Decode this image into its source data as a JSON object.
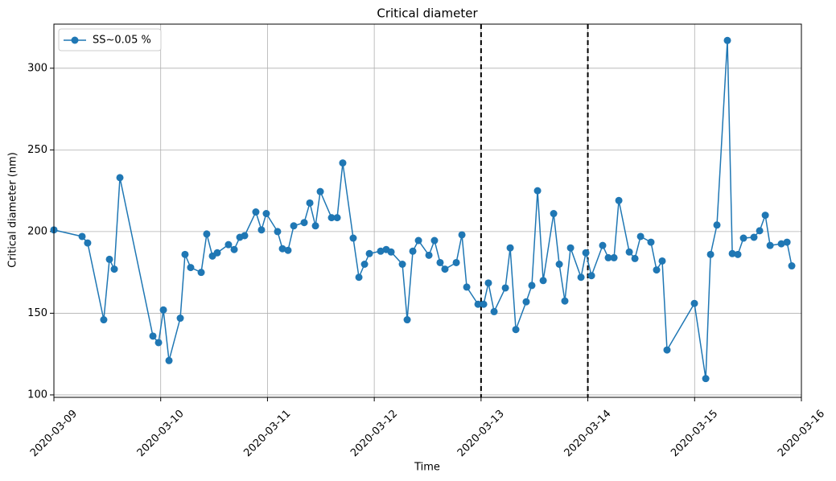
{
  "chart_data": {
    "type": "line",
    "title": "Critical diameter",
    "xlabel": "Time",
    "ylabel": "Critical diameter (nm)",
    "xlim": [
      "2020-03-09",
      "2020-03-16"
    ],
    "xticks": [
      "2020-03-09",
      "2020-03-10",
      "2020-03-11",
      "2020-03-12",
      "2020-03-13",
      "2020-03-14",
      "2020-03-15",
      "2020-03-16"
    ],
    "ylim": [
      98.5,
      327
    ],
    "yticks": [
      100,
      150,
      200,
      250,
      300
    ],
    "grid": true,
    "legend": "upper left",
    "vlines": [
      "2020-03-13",
      "2020-03-14"
    ],
    "vline_color": "#000000",
    "x": [
      "2020-03-09T00:00",
      "2020-03-09T06:20",
      "2020-03-09T07:35",
      "2020-03-09T11:12",
      "2020-03-09T12:29",
      "2020-03-09T13:34",
      "2020-03-09T14:50",
      "2020-03-09T22:15",
      "2020-03-09T23:31",
      "2020-03-10T00:36",
      "2020-03-10T01:52",
      "2020-03-10T04:24",
      "2020-03-10T05:28",
      "2020-03-10T06:44",
      "2020-03-10T09:06",
      "2020-03-10T10:21",
      "2020-03-10T11:38",
      "2020-03-10T12:43",
      "2020-03-10T15:14",
      "2020-03-10T16:31",
      "2020-03-10T17:47",
      "2020-03-10T18:52",
      "2020-03-10T21:23",
      "2020-03-10T22:39",
      "2020-03-10T23:44",
      "2020-03-11T02:16",
      "2020-03-11T03:22",
      "2020-03-11T04:37",
      "2020-03-11T05:54",
      "2020-03-11T08:15",
      "2020-03-11T09:31",
      "2020-03-11T10:47",
      "2020-03-11T11:52",
      "2020-03-11T14:24",
      "2020-03-11T15:40",
      "2020-03-11T16:55",
      "2020-03-11T19:16",
      "2020-03-11T20:33",
      "2020-03-11T21:49",
      "2020-03-11T22:54",
      "2020-03-12T01:26",
      "2020-03-12T02:41",
      "2020-03-12T03:47",
      "2020-03-12T06:19",
      "2020-03-12T07:24",
      "2020-03-12T08:40",
      "2020-03-12T09:56",
      "2020-03-12T12:17",
      "2020-03-12T13:32",
      "2020-03-12T14:48",
      "2020-03-12T15:53",
      "2020-03-12T18:26",
      "2020-03-12T19:42",
      "2020-03-12T20:47",
      "2020-03-12T23:19",
      "2020-03-13T00:35",
      "2020-03-13T01:39",
      "2020-03-13T02:56",
      "2020-03-13T05:28",
      "2020-03-13T06:33",
      "2020-03-13T07:49",
      "2020-03-13T10:09",
      "2020-03-13T11:25",
      "2020-03-13T12:42",
      "2020-03-13T13:58",
      "2020-03-13T16:19",
      "2020-03-13T17:35",
      "2020-03-13T18:50",
      "2020-03-13T20:07",
      "2020-03-13T22:28",
      "2020-03-13T23:33",
      "2020-03-14T00:49",
      "2020-03-14T03:20",
      "2020-03-14T04:36",
      "2020-03-14T05:53",
      "2020-03-14T06:58",
      "2020-03-14T09:19",
      "2020-03-14T10:35",
      "2020-03-14T11:51",
      "2020-03-14T14:11",
      "2020-03-14T15:27",
      "2020-03-14T16:43",
      "2020-03-14T17:48",
      "2020-03-14T23:57",
      "2020-03-15T02:30",
      "2020-03-15T03:35",
      "2020-03-15T05:01",
      "2020-03-15T07:22",
      "2020-03-15T08:28",
      "2020-03-15T09:43",
      "2020-03-15T10:59",
      "2020-03-15T13:20",
      "2020-03-15T14:37",
      "2020-03-15T15:53",
      "2020-03-15T16:58",
      "2020-03-15T19:29",
      "2020-03-15T20:46",
      "2020-03-15T21:50"
    ],
    "series": [
      {
        "name": "SS~0.05 %",
        "color": "#1f77b4",
        "values": [
          201,
          197,
          193,
          146,
          183,
          177,
          233,
          136,
          132,
          152,
          121,
          147,
          186,
          178,
          175,
          198.5,
          185,
          187,
          192,
          189,
          196.5,
          197.5,
          212,
          201,
          211,
          200,
          189.5,
          188.5,
          203.5,
          205.5,
          217.5,
          203.5,
          224.5,
          208.5,
          208.5,
          242,
          196,
          172,
          180,
          186.5,
          188,
          189,
          187.5,
          180,
          146,
          188,
          194.5,
          185.5,
          194.5,
          181,
          177,
          181,
          198,
          166,
          155.5,
          155.5,
          168.5,
          151,
          165.5,
          190,
          140,
          157,
          167,
          225,
          170,
          211,
          180,
          157.5,
          190,
          172,
          187,
          173,
          191.5,
          184,
          184,
          219,
          187.5,
          183.5,
          197,
          193.5,
          176.5,
          182,
          127.5,
          156,
          110,
          186,
          204,
          317,
          186.5,
          186,
          196,
          196.5,
          200.5,
          210,
          191.5,
          192.5,
          193.5,
          179
        ]
      }
    ]
  }
}
